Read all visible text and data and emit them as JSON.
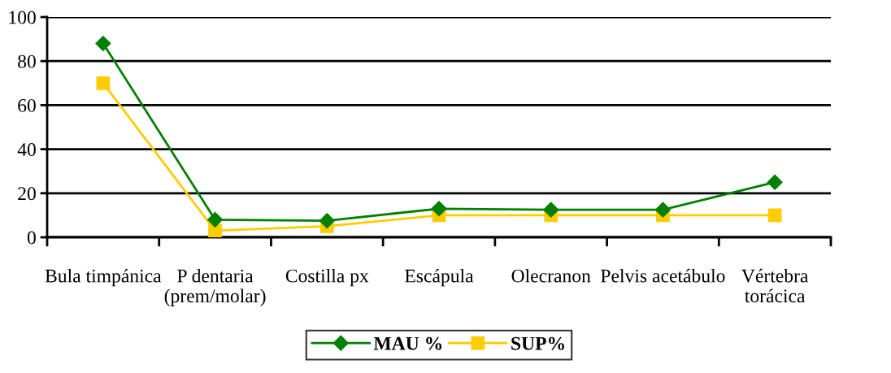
{
  "chart_data": {
    "type": "line",
    "categories": [
      "Bula timpánica",
      "P dentaria\n(prem/molar)",
      "Costilla px",
      "Escápula",
      "Olecranon",
      "Pelvis acetábulo",
      "Vértebra\ntorácica"
    ],
    "series": [
      {
        "name": "MAU %",
        "color": "#008000",
        "marker": "diamond",
        "values": [
          88,
          8,
          7.5,
          13,
          12.5,
          12.5,
          25
        ]
      },
      {
        "name": "SUP%",
        "color": "#ffcc00",
        "marker": "square",
        "values": [
          70,
          3,
          5,
          10,
          10,
          10,
          10
        ]
      }
    ],
    "ylim": [
      0,
      100
    ],
    "yticks": [
      0,
      20,
      40,
      60,
      80,
      100
    ],
    "grid": "y",
    "legend": "bottom"
  }
}
